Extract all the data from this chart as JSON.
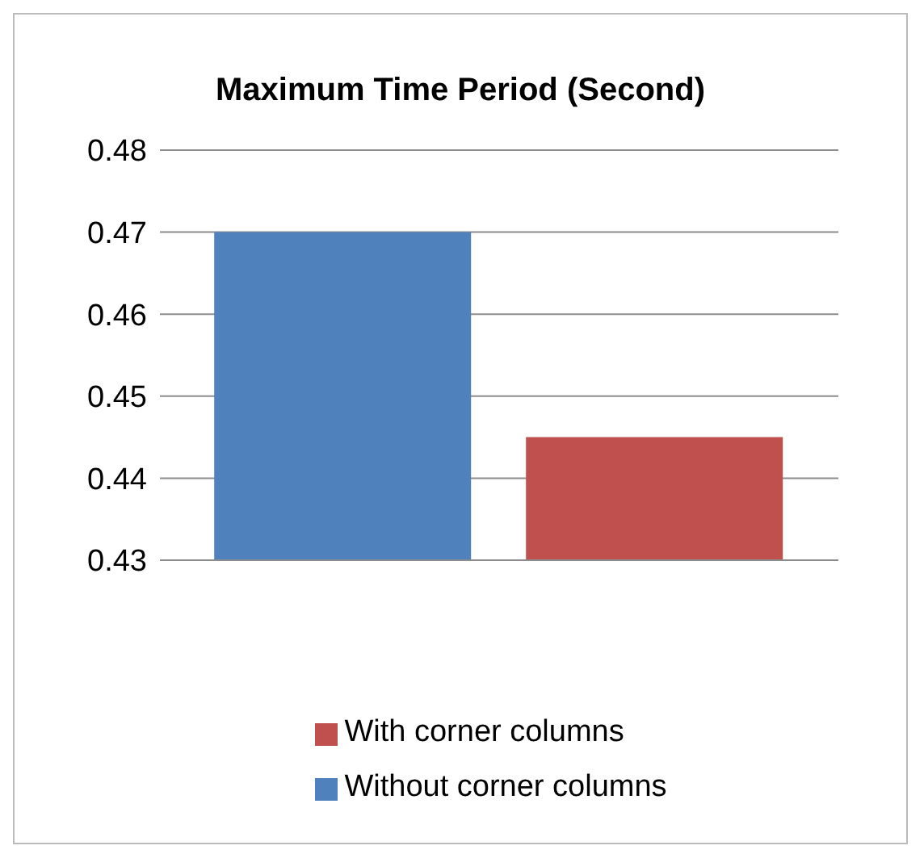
{
  "chart_data": {
    "type": "bar",
    "title": "Maximum Time Period (Second)",
    "categories": [
      null
    ],
    "series": [
      {
        "name": "Without corner columns",
        "color": "#4f81bd",
        "values": [
          0.47
        ]
      },
      {
        "name": "With corner columns",
        "color": "#c0504d",
        "values": [
          0.445
        ]
      }
    ],
    "ylim": [
      0.43,
      0.48
    ],
    "yticks": [
      0.43,
      0.44,
      0.45,
      0.46,
      0.47,
      0.48
    ],
    "grid": "y",
    "legend": "bottom"
  }
}
